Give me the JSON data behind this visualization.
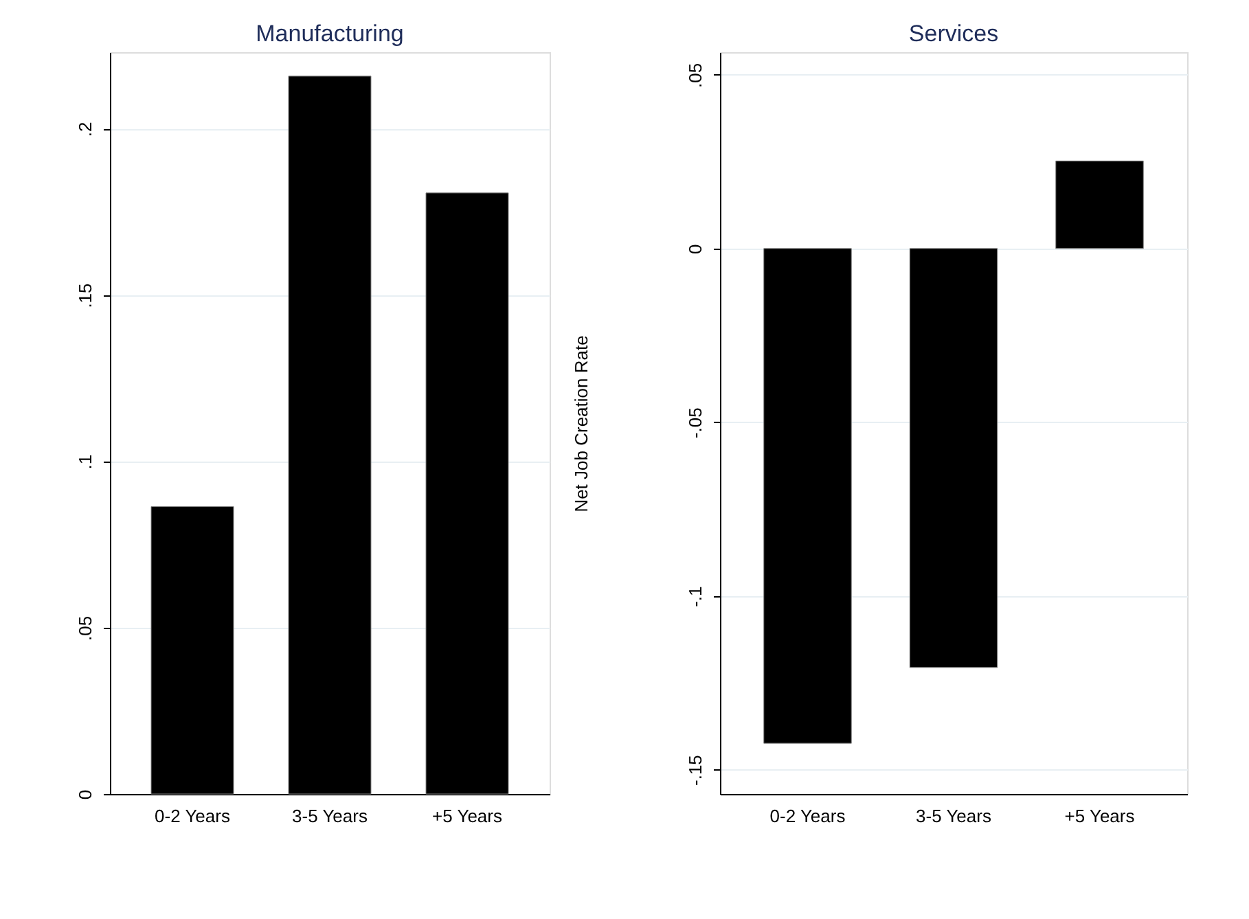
{
  "chart_data": [
    {
      "type": "bar",
      "title": "Manufacturing",
      "categories": [
        "0-2 Years",
        "3-5 Years",
        "+5 Years"
      ],
      "values": [
        0.0864,
        0.2158,
        0.1807
      ],
      "color": "#000000",
      "ylim": [
        0,
        0.223
      ],
      "yticks": [
        0,
        {
          "value": 0.05,
          "label": ".05"
        },
        {
          "value": 0.1,
          "label": ".1"
        },
        {
          "value": 0.15,
          "label": ".15"
        },
        {
          "value": 0.2,
          "label": ".2"
        }
      ],
      "grid": "y"
    },
    {
      "type": "bar",
      "title": "Services",
      "ylabel": "Net Job Creation Rate",
      "categories": [
        "0-2 Years",
        "3-5 Years",
        "+5 Years"
      ],
      "values": [
        -0.1424,
        -0.1206,
        0.0252
      ],
      "color": "#000000",
      "ylim": [
        -0.157,
        0.0565
      ],
      "yticks": [
        {
          "value": -0.15,
          "label": "-.15"
        },
        {
          "value": -0.1,
          "label": "-.1"
        },
        {
          "value": -0.05,
          "label": "-.05"
        },
        0,
        {
          "value": 0.05,
          "label": ".05"
        }
      ],
      "grid": "y"
    }
  ]
}
